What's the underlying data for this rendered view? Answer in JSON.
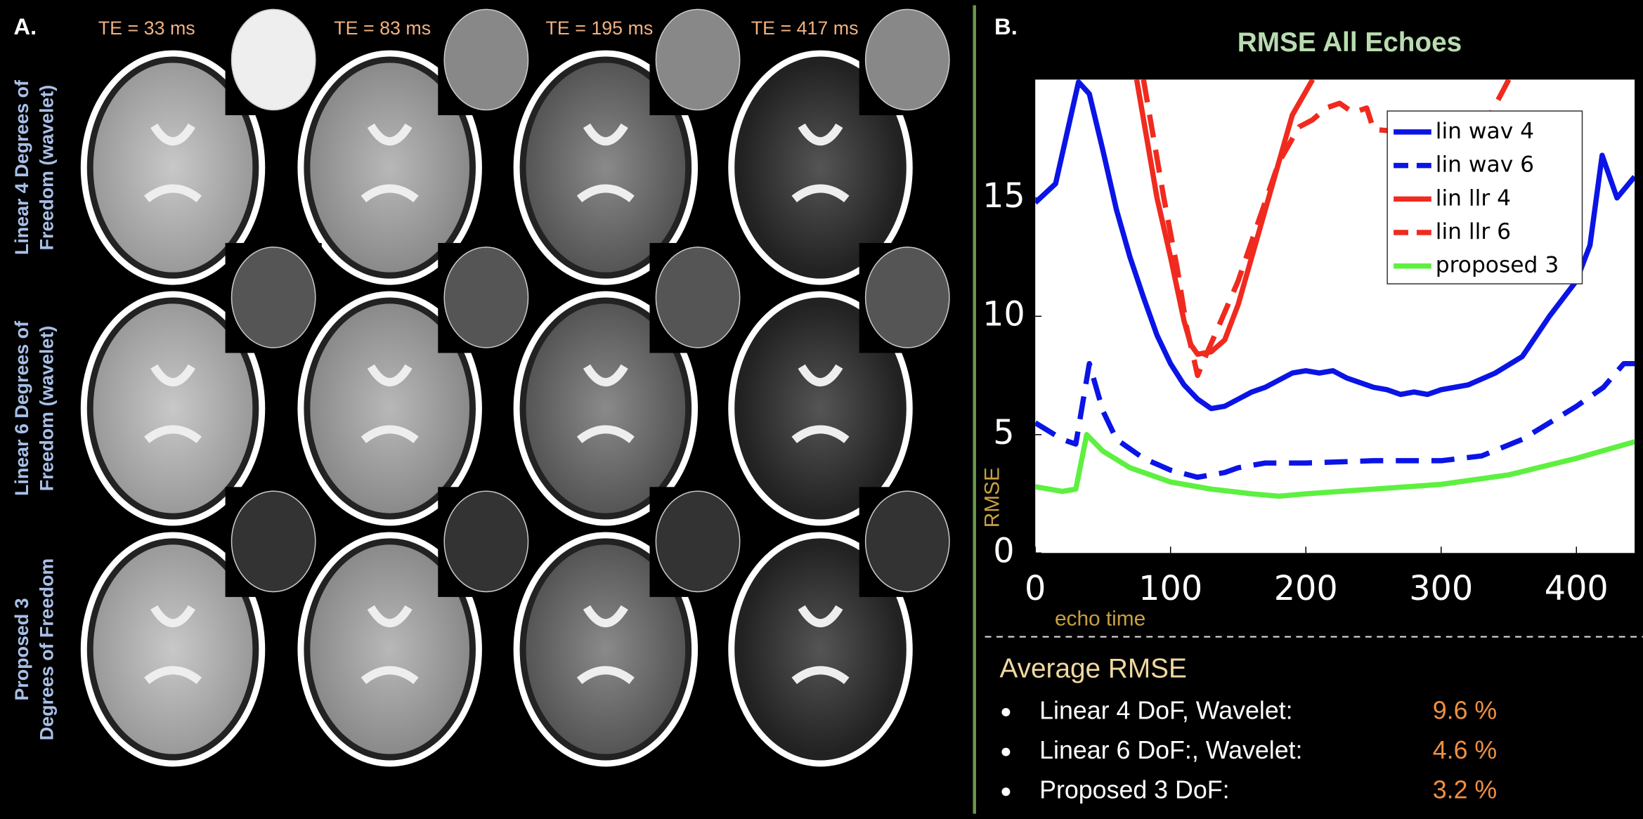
{
  "panel_a": {
    "label": "A.",
    "te_labels": [
      "TE = 33 ms",
      "TE = 83 ms",
      "TE = 195 ms",
      "TE = 417 ms"
    ],
    "row_labels": [
      [
        "Linear 4 Degrees of",
        "Freedom (wavelet)"
      ],
      [
        "Linear 6 Degrees of",
        "Freedom (wavelet)"
      ],
      [
        "Proposed 3",
        "Degrees of Freedom"
      ]
    ]
  },
  "panel_b": {
    "label": "B.",
    "summary": {
      "title": "Average RMSE",
      "items": [
        {
          "label": "Linear  4 DoF, Wavelet:",
          "value": "9.6 %"
        },
        {
          "label": "Linear 6 DoF:, Wavelet:",
          "value": "4.6 %"
        },
        {
          "label": "Proposed 3 DoF:",
          "value": "3.2 %"
        }
      ]
    }
  },
  "chart_data": {
    "type": "line",
    "title": "RMSE All Echoes",
    "x_label": "echo time",
    "y_label": "RMSE",
    "xlim": [
      0,
      443
    ],
    "ylim": [
      0,
      20
    ],
    "xticks": [
      0,
      100,
      200,
      300,
      400
    ],
    "yticks": [
      0,
      5,
      10,
      15
    ],
    "legend": "upper right",
    "series": [
      {
        "name": "lin wav 4",
        "color": "#0a14e6",
        "dash": false,
        "x": [
          0,
          15,
          32,
          40,
          50,
          60,
          70,
          80,
          90,
          100,
          110,
          120,
          130,
          140,
          150,
          160,
          170,
          180,
          190,
          200,
          210,
          220,
          230,
          240,
          250,
          260,
          270,
          280,
          290,
          300,
          320,
          340,
          360,
          380,
          400,
          410,
          419,
          430,
          443
        ],
        "values": [
          14.8,
          15.6,
          19.9,
          19.4,
          17,
          14.5,
          12.5,
          10.8,
          9.2,
          8,
          7.1,
          6.5,
          6.1,
          6.2,
          6.5,
          6.8,
          7.0,
          7.3,
          7.6,
          7.7,
          7.6,
          7.7,
          7.4,
          7.2,
          7.0,
          6.9,
          6.7,
          6.8,
          6.7,
          6.9,
          7.1,
          7.6,
          8.3,
          10,
          11.5,
          13,
          16.8,
          15,
          15.9
        ]
      },
      {
        "name": "lin wav 6",
        "color": "#0a14e6",
        "dash": true,
        "x": [
          0,
          20,
          30,
          40,
          50,
          60,
          80,
          100,
          120,
          130,
          140,
          150,
          170,
          200,
          250,
          300,
          330,
          360,
          380,
          400,
          420,
          435,
          443
        ],
        "values": [
          5.5,
          4.8,
          4.6,
          8.0,
          6,
          4.8,
          4,
          3.5,
          3.2,
          3.3,
          3.4,
          3.6,
          3.8,
          3.8,
          3.9,
          3.9,
          4.1,
          4.8,
          5.5,
          6.2,
          7,
          8.0,
          8.0
        ]
      },
      {
        "name": "lin llr 4",
        "color": "#f02a1e",
        "dash": false,
        "x": [
          75,
          90,
          100,
          110,
          115,
          120,
          130,
          140,
          150,
          160,
          170,
          180,
          190,
          205
        ],
        "values": [
          20,
          15,
          12.5,
          9.8,
          8.8,
          8.4,
          8.5,
          9.0,
          10.5,
          12.5,
          14.5,
          16.5,
          18.5,
          20
        ]
      },
      {
        "name": "lin llr 6",
        "color": "#f02a1e",
        "dash": true,
        "x": [
          80,
          95,
          105,
          112,
          118,
          120,
          125,
          135,
          150,
          165,
          180,
          195,
          205,
          215,
          225,
          235,
          245,
          250,
          327,
          350
        ],
        "values": [
          20,
          15,
          12,
          9.5,
          8,
          7.5,
          8.2,
          9.5,
          11.5,
          14,
          16.5,
          18,
          18.3,
          18.8,
          19,
          18.6,
          18.8,
          17.9,
          17.5,
          20
        ]
      },
      {
        "name": "proposed 3",
        "color": "#5ef040",
        "dash": false,
        "x": [
          0,
          20,
          30,
          38,
          50,
          70,
          100,
          130,
          160,
          180,
          200,
          250,
          300,
          350,
          400,
          443
        ],
        "values": [
          2.8,
          2.6,
          2.7,
          5.0,
          4.3,
          3.6,
          3.0,
          2.7,
          2.5,
          2.4,
          2.5,
          2.7,
          2.9,
          3.3,
          4.0,
          4.7
        ]
      }
    ]
  }
}
